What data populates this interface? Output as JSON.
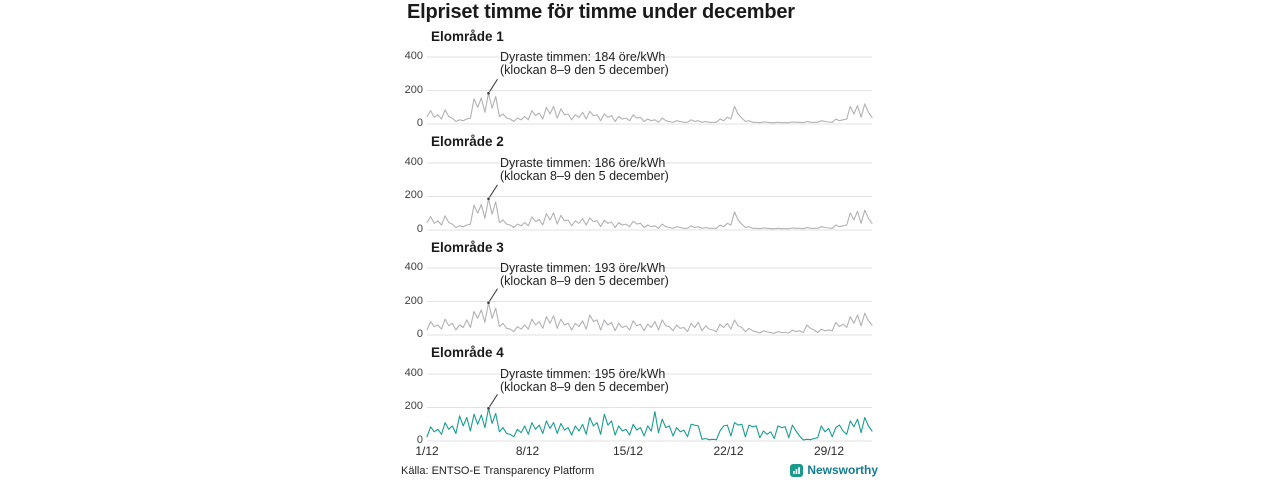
{
  "title": "Elpriset timme för timme under december",
  "footer": {
    "source": "Källa: ENTSO-E Transparency Platform",
    "brand_name": "Newsworthy"
  },
  "colors": {
    "gray_line": "#b2b2b5",
    "accent_line": "#1a9e8f",
    "grid": "#e2e2e2",
    "annotation": "#3a3a3a",
    "brand_green": "#1b998b",
    "brand_text": "#147c8d"
  },
  "chart_data": {
    "type": "line",
    "title": "Elpriset timme för timme under december",
    "x_unit": "dagar i december (värden samplade var 6:e timme)",
    "y_unit": "öre/kWh",
    "ylim": [
      0,
      400
    ],
    "yticks": [
      0,
      200,
      400
    ],
    "grid": "horizontal",
    "x_tick_labels": [
      "1/12",
      "8/12",
      "15/12",
      "22/12",
      "29/12"
    ],
    "x_tick_days": [
      1,
      8,
      15,
      22,
      29
    ],
    "days": 31,
    "panels": [
      {
        "title": "Elområde 1",
        "annotation_line1": "Dyraste timmen: 184 öre/kWh",
        "annotation_line2": "(klockan 8–9 den 5 december)",
        "max_value": 184,
        "max_time": "8–9 den 5 december",
        "color": "#b2b2b5",
        "values": [
          45,
          80,
          40,
          55,
          30,
          85,
          45,
          35,
          15,
          25,
          20,
          30,
          35,
          150,
          100,
          155,
          70,
          184,
          95,
          165,
          45,
          60,
          35,
          30,
          15,
          35,
          25,
          45,
          25,
          80,
          50,
          65,
          30,
          100,
          60,
          105,
          35,
          90,
          55,
          60,
          25,
          55,
          40,
          70,
          30,
          75,
          50,
          55,
          20,
          60,
          40,
          50,
          15,
          45,
          30,
          35,
          20,
          55,
          35,
          40,
          15,
          30,
          20,
          25,
          10,
          35,
          20,
          15,
          10,
          20,
          15,
          10,
          10,
          25,
          15,
          20,
          10,
          15,
          10,
          10,
          10,
          30,
          20,
          40,
          30,
          105,
          60,
          35,
          15,
          20,
          10,
          10,
          8,
          12,
          10,
          8,
          8,
          10,
          8,
          8,
          8,
          12,
          10,
          10,
          8,
          15,
          10,
          10,
          10,
          20,
          15,
          12,
          10,
          30,
          20,
          25,
          30,
          105,
          60,
          110,
          40,
          120,
          70,
          40
        ]
      },
      {
        "title": "Elområde 2",
        "annotation_line1": "Dyraste timmen: 186 öre/kWh",
        "annotation_line2": "(klockan 8–9 den 5 december)",
        "max_value": 186,
        "max_time": "8–9 den 5 december",
        "color": "#b2b2b5",
        "values": [
          45,
          80,
          40,
          55,
          30,
          85,
          45,
          35,
          15,
          25,
          20,
          30,
          35,
          148,
          100,
          152,
          70,
          186,
          95,
          168,
          45,
          60,
          35,
          30,
          15,
          35,
          25,
          45,
          25,
          78,
          50,
          62,
          30,
          98,
          60,
          102,
          35,
          88,
          55,
          60,
          25,
          55,
          40,
          68,
          30,
          72,
          50,
          55,
          20,
          58,
          40,
          48,
          15,
          45,
          30,
          35,
          20,
          52,
          35,
          40,
          15,
          30,
          20,
          25,
          10,
          35,
          20,
          15,
          10,
          20,
          15,
          10,
          10,
          25,
          15,
          20,
          10,
          15,
          10,
          10,
          10,
          30,
          20,
          40,
          30,
          108,
          60,
          35,
          15,
          20,
          10,
          10,
          8,
          12,
          10,
          8,
          8,
          10,
          8,
          8,
          8,
          12,
          10,
          10,
          8,
          15,
          10,
          10,
          10,
          20,
          15,
          12,
          10,
          30,
          20,
          25,
          30,
          102,
          60,
          112,
          40,
          118,
          70,
          40
        ]
      },
      {
        "title": "Elområde 3",
        "annotation_line1": "Dyraste timmen: 193 öre/kWh",
        "annotation_line2": "(klockan 8–9 den 5 december)",
        "max_value": 193,
        "max_time": "8–9 den 5 december",
        "color": "#b2b2b5",
        "values": [
          30,
          80,
          50,
          60,
          35,
          95,
          55,
          70,
          30,
          60,
          45,
          90,
          45,
          140,
          100,
          150,
          75,
          193,
          100,
          160,
          50,
          70,
          40,
          35,
          20,
          50,
          35,
          60,
          35,
          95,
          60,
          80,
          40,
          110,
          70,
          115,
          40,
          95,
          60,
          70,
          30,
          70,
          50,
          85,
          35,
          120,
          80,
          90,
          30,
          90,
          60,
          75,
          25,
          70,
          45,
          55,
          30,
          85,
          55,
          65,
          25,
          65,
          45,
          80,
          30,
          90,
          55,
          50,
          25,
          60,
          40,
          45,
          20,
          70,
          45,
          75,
          25,
          55,
          35,
          30,
          20,
          65,
          45,
          70,
          35,
          90,
          55,
          45,
          20,
          40,
          25,
          20,
          12,
          25,
          18,
          15,
          10,
          20,
          15,
          15,
          12,
          30,
          20,
          25,
          15,
          60,
          40,
          30,
          15,
          35,
          25,
          30,
          25,
          75,
          50,
          65,
          45,
          110,
          70,
          120,
          55,
          130,
          85,
          60
        ]
      },
      {
        "title": "Elområde 4",
        "annotation_line1": "Dyraste timmen: 195 öre/kWh",
        "annotation_line2": "(klockan 8–9 den 5 december)",
        "max_value": 195,
        "max_time": "8–9 den 5 december",
        "color": "#1a9e8f",
        "values": [
          25,
          85,
          55,
          70,
          40,
          110,
          70,
          90,
          45,
          150,
          90,
          140,
          60,
          160,
          100,
          155,
          80,
          195,
          105,
          165,
          55,
          80,
          45,
          40,
          25,
          70,
          50,
          90,
          40,
          110,
          70,
          95,
          45,
          120,
          75,
          110,
          45,
          105,
          65,
          80,
          35,
          90,
          60,
          100,
          40,
          140,
          90,
          110,
          40,
          160,
          95,
          120,
          35,
          90,
          60,
          70,
          35,
          100,
          65,
          80,
          30,
          90,
          60,
          175,
          50,
          130,
          80,
          90,
          30,
          80,
          55,
          65,
          25,
          100,
          95,
          90,
          10,
          15,
          8,
          10,
          8,
          60,
          90,
          95,
          30,
          110,
          95,
          100,
          25,
          95,
          85,
          90,
          20,
          60,
          40,
          55,
          15,
          90,
          80,
          85,
          20,
          95,
          60,
          30,
          6,
          10,
          8,
          15,
          20,
          90,
          55,
          75,
          25,
          80,
          95,
          60,
          40,
          120,
          85,
          130,
          50,
          140,
          90,
          60
        ]
      }
    ]
  }
}
